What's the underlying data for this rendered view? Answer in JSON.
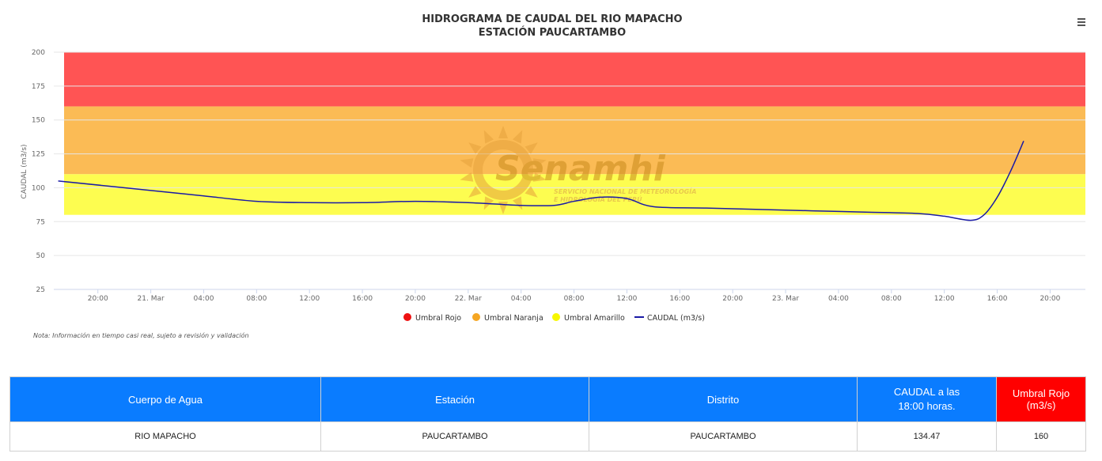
{
  "chart_data": {
    "type": "line",
    "title": "HIDROGRAMA DE CAUDAL DEL RIO MAPACHO",
    "subtitle": "ESTACIÓN PAUCARTAMBO",
    "ylabel": "CAUDAL (m3/s)",
    "ylim": [
      25,
      200
    ],
    "yticks": [
      25,
      50,
      75,
      100,
      125,
      150,
      175,
      200
    ],
    "xlim": [
      "2024-03-20T16:40",
      "2024-03-23T22:40"
    ],
    "xticks": [
      {
        "t": "2024-03-20T20:00",
        "label": "20:00"
      },
      {
        "t": "2024-03-21T00:00",
        "label": "21. Mar"
      },
      {
        "t": "2024-03-21T04:00",
        "label": "04:00"
      },
      {
        "t": "2024-03-21T08:00",
        "label": "08:00"
      },
      {
        "t": "2024-03-21T12:00",
        "label": "12:00"
      },
      {
        "t": "2024-03-21T16:00",
        "label": "16:00"
      },
      {
        "t": "2024-03-21T20:00",
        "label": "20:00"
      },
      {
        "t": "2024-03-22T00:00",
        "label": "22. Mar"
      },
      {
        "t": "2024-03-22T04:00",
        "label": "04:00"
      },
      {
        "t": "2024-03-22T08:00",
        "label": "08:00"
      },
      {
        "t": "2024-03-22T12:00",
        "label": "12:00"
      },
      {
        "t": "2024-03-22T16:00",
        "label": "16:00"
      },
      {
        "t": "2024-03-22T20:00",
        "label": "20:00"
      },
      {
        "t": "2024-03-23T00:00",
        "label": "23. Mar"
      },
      {
        "t": "2024-03-23T04:00",
        "label": "04:00"
      },
      {
        "t": "2024-03-23T08:00",
        "label": "08:00"
      },
      {
        "t": "2024-03-23T12:00",
        "label": "12:00"
      },
      {
        "t": "2024-03-23T16:00",
        "label": "16:00"
      },
      {
        "t": "2024-03-23T20:00",
        "label": "20:00"
      }
    ],
    "bands": [
      {
        "name": "Umbral Rojo",
        "from": 160,
        "to": 200,
        "color": "#ff5454"
      },
      {
        "name": "Umbral Naranja",
        "from": 110,
        "to": 160,
        "color": "#fbbb55"
      },
      {
        "name": "Umbral Amarillo",
        "from": 80,
        "to": 110,
        "color": "#fdfd50"
      }
    ],
    "series": [
      {
        "name": "CAUDAL (m3/s)",
        "color": "#1a1aa6",
        "points": [
          {
            "t": "2024-03-20T17:00",
            "y": 105
          },
          {
            "t": "2024-03-21T00:00",
            "y": 98
          },
          {
            "t": "2024-03-21T04:00",
            "y": 94
          },
          {
            "t": "2024-03-21T08:00",
            "y": 90
          },
          {
            "t": "2024-03-21T12:00",
            "y": 89
          },
          {
            "t": "2024-03-21T16:00",
            "y": 89
          },
          {
            "t": "2024-03-21T20:00",
            "y": 90
          },
          {
            "t": "2024-03-22T00:00",
            "y": 89
          },
          {
            "t": "2024-03-22T04:00",
            "y": 87
          },
          {
            "t": "2024-03-22T06:30",
            "y": 87
          },
          {
            "t": "2024-03-22T08:00",
            "y": 90
          },
          {
            "t": "2024-03-22T10:00",
            "y": 93
          },
          {
            "t": "2024-03-22T12:00",
            "y": 92
          },
          {
            "t": "2024-03-22T14:00",
            "y": 86
          },
          {
            "t": "2024-03-22T18:00",
            "y": 85
          },
          {
            "t": "2024-03-22T22:00",
            "y": 84
          },
          {
            "t": "2024-03-23T02:00",
            "y": 83
          },
          {
            "t": "2024-03-23T06:00",
            "y": 82
          },
          {
            "t": "2024-03-23T10:00",
            "y": 81
          },
          {
            "t": "2024-03-23T12:00",
            "y": 79
          },
          {
            "t": "2024-03-23T14:00",
            "y": 76
          },
          {
            "t": "2024-03-23T15:00",
            "y": 80
          },
          {
            "t": "2024-03-23T16:00",
            "y": 93
          },
          {
            "t": "2024-03-23T17:00",
            "y": 112
          },
          {
            "t": "2024-03-23T18:00",
            "y": 134.47
          }
        ]
      }
    ],
    "legend": [
      "Umbral Rojo",
      "Umbral Naranja",
      "Umbral Amarillo",
      "CAUDAL (m3/s)"
    ],
    "legend_placement": "bottom-center",
    "grid": true
  },
  "watermark": {
    "brand": "Senamhi",
    "line1": "SERVICIO NACIONAL DE METEOROLOGÍA",
    "line2": "E HIDROLOGÍA DEL PERÚ",
    "icon": "sun-logo-icon"
  },
  "note": "Nota: Información en tiempo casi real, sujeto a revisión y validación",
  "menu_icon": "hamburger-menu-icon",
  "table": {
    "headers": [
      "Cuerpo de Agua",
      "Estación",
      "Distrito",
      "CAUDAL a las",
      "18:00 horas.",
      "Umbral Rojo (m3/s)"
    ],
    "row": [
      "RIO MAPACHO",
      "PAUCARTAMBO",
      "PAUCARTAMBO",
      "134.47",
      "160"
    ],
    "header_color": "#0a7cff",
    "alert_color": "#ff0000"
  }
}
